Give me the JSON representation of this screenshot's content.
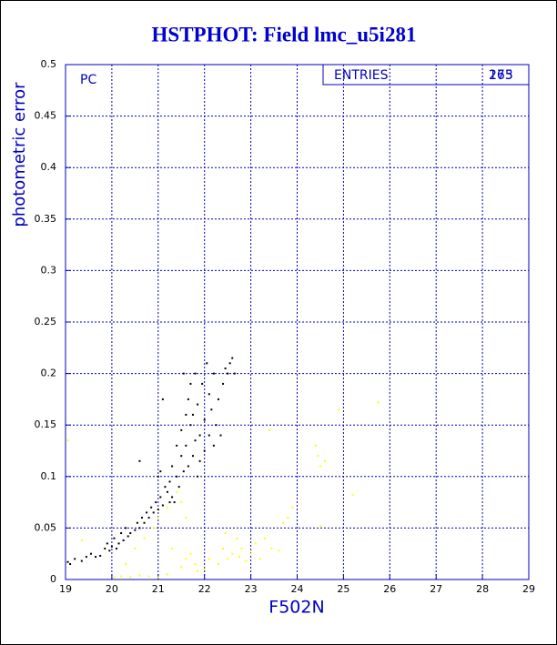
{
  "chart_data": {
    "type": "scatter",
    "title": "HSTPHOT: Field lmc_u5i281",
    "panel_label": "PC",
    "entries_label": "ENTRIES",
    "entries": [
      "175",
      "263"
    ],
    "xlabel": "F502N",
    "ylabel": "photometric error",
    "xlim": [
      19,
      29
    ],
    "ylim": [
      0,
      0.5
    ],
    "xticks": [
      19,
      20,
      21,
      22,
      23,
      24,
      25,
      26,
      27,
      28,
      29
    ],
    "yticks": [
      0,
      0.05,
      0.1,
      0.15,
      0.2,
      0.25,
      0.3,
      0.35,
      0.4,
      0.45,
      0.5
    ],
    "grid": true,
    "series": [
      {
        "color": "#000000",
        "x": [
          19.05,
          19.1,
          19.2,
          19.35,
          19.45,
          19.55,
          19.65,
          19.75,
          19.85,
          19.9,
          19.95,
          20.0,
          20.05,
          20.1,
          20.15,
          20.2,
          20.25,
          20.3,
          20.35,
          20.4,
          20.5,
          20.55,
          20.6,
          20.65,
          20.7,
          20.75,
          20.8,
          20.85,
          20.9,
          20.95,
          21.0,
          21.05,
          21.1,
          21.0,
          21.15,
          21.2,
          21.25,
          21.3,
          21.3,
          21.35,
          21.4,
          21.4,
          21.45,
          21.5,
          21.5,
          21.55,
          21.55,
          21.6,
          21.6,
          21.65,
          21.65,
          21.7,
          21.7,
          21.75,
          21.75,
          21.8,
          21.8,
          21.85,
          21.85,
          21.9,
          21.9,
          21.95,
          22.0,
          22.0,
          22.05,
          22.1,
          22.1,
          22.15,
          22.2,
          22.2,
          22.25,
          22.3,
          22.35,
          22.4,
          22.45,
          22.5,
          22.55,
          22.6,
          22.65,
          21.1,
          20.6,
          21.05,
          21.25
        ],
        "y": [
          0.017,
          0.015,
          0.02,
          0.018,
          0.022,
          0.025,
          0.022,
          0.023,
          0.03,
          0.035,
          0.028,
          0.032,
          0.04,
          0.03,
          0.035,
          0.045,
          0.038,
          0.05,
          0.042,
          0.045,
          0.048,
          0.055,
          0.05,
          0.06,
          0.055,
          0.065,
          0.06,
          0.07,
          0.065,
          0.075,
          0.068,
          0.08,
          0.072,
          0.1,
          0.09,
          0.085,
          0.095,
          0.08,
          0.11,
          0.075,
          0.1,
          0.13,
          0.09,
          0.12,
          0.145,
          0.105,
          0.2,
          0.16,
          0.13,
          0.11,
          0.175,
          0.15,
          0.19,
          0.12,
          0.16,
          0.135,
          0.2,
          0.1,
          0.17,
          0.14,
          0.115,
          0.19,
          0.125,
          0.155,
          0.21,
          0.14,
          0.18,
          0.165,
          0.13,
          0.2,
          0.15,
          0.175,
          0.14,
          0.19,
          0.205,
          0.2,
          0.21,
          0.215,
          0.2,
          0.175,
          0.115,
          0.105,
          0.075
        ]
      },
      {
        "color": "#ffff00",
        "x": [
          19.05,
          19.35,
          20.05,
          20.2,
          20.4,
          20.6,
          20.8,
          21.0,
          21.2,
          20.5,
          20.7,
          20.9,
          21.0,
          21.2,
          21.4,
          21.5,
          21.6,
          21.5,
          21.6,
          21.7,
          21.8,
          21.85,
          22.0,
          22.1,
          22.3,
          22.4,
          22.45,
          22.5,
          22.6,
          22.7,
          22.75,
          22.8,
          22.9,
          23.0,
          23.1,
          23.2,
          23.3,
          23.45,
          23.6,
          23.7,
          23.8,
          23.9,
          24.4,
          24.45,
          24.5,
          24.6,
          24.5,
          24.9,
          25.2,
          25.75,
          23.4,
          21.3,
          20.3
        ],
        "y": [
          0.135,
          0.038,
          0.002,
          0.003,
          0.002,
          0.004,
          0.003,
          0.002,
          0.005,
          0.03,
          0.04,
          0.05,
          0.06,
          0.07,
          0.085,
          0.075,
          0.06,
          0.012,
          0.02,
          0.025,
          0.015,
          0.008,
          0.01,
          0.02,
          0.015,
          0.03,
          0.045,
          0.02,
          0.025,
          0.04,
          0.022,
          0.03,
          0.018,
          0.025,
          0.035,
          0.02,
          0.04,
          0.03,
          0.028,
          0.055,
          0.06,
          0.07,
          0.13,
          0.12,
          0.11,
          0.115,
          0.052,
          0.165,
          0.082,
          0.172,
          0.145,
          0.03,
          0.015
        ]
      }
    ]
  }
}
